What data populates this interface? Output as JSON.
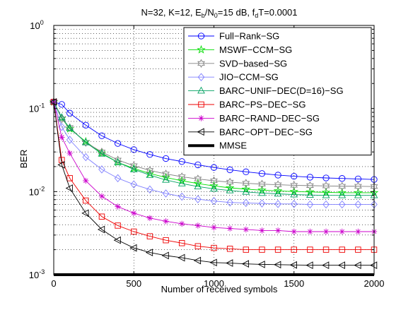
{
  "chart_data": {
    "type": "line",
    "title": "N=32, K=12, E_b/N_0=15 dB, f_dT=0.0001",
    "title_parts": {
      "p1": "N=32, K=12, E",
      "sub1": "b",
      "p2": "/N",
      "sub2": "0",
      "p3": "=15 dB, f",
      "sub3": "d",
      "p4": "T=0.0001"
    },
    "xlabel": "Number of received symbols",
    "ylabel": "BER",
    "x_scale": "linear",
    "y_scale": "log",
    "xlim": [
      0,
      2000
    ],
    "ylim": [
      0.001,
      1
    ],
    "x_ticks": [
      {
        "value": 0,
        "label": "0"
      },
      {
        "value": 500,
        "label": "500"
      },
      {
        "value": 1000,
        "label": "1000"
      },
      {
        "value": 1500,
        "label": "1500"
      },
      {
        "value": 2000,
        "label": "2000"
      }
    ],
    "y_ticks": [
      {
        "value": 0.001,
        "base": "10",
        "exp": "-3"
      },
      {
        "value": 0.01,
        "base": "10",
        "exp": "-2"
      },
      {
        "value": 0.1,
        "base": "10",
        "exp": "-1"
      },
      {
        "value": 1,
        "base": "10",
        "exp": "0"
      }
    ],
    "grid": true,
    "legend_position": "top-right",
    "x": [
      0,
      50,
      100,
      200,
      300,
      400,
      500,
      600,
      700,
      800,
      900,
      1000,
      1100,
      1200,
      1300,
      1400,
      1500,
      1600,
      1700,
      1800,
      1900,
      2000
    ],
    "series": [
      {
        "name": "Full−Rank−SG",
        "color": "#0000ff",
        "marker": "circle",
        "values": [
          0.12,
          0.112,
          0.088,
          0.063,
          0.047,
          0.038,
          0.032,
          0.028,
          0.025,
          0.023,
          0.021,
          0.0195,
          0.0183,
          0.0173,
          0.0165,
          0.0158,
          0.0153,
          0.0149,
          0.0146,
          0.0144,
          0.0142,
          0.014
        ]
      },
      {
        "name": "MSWF−CCM−SG",
        "color": "#00dd00",
        "marker": "star",
        "values": [
          0.12,
          0.076,
          0.057,
          0.04,
          0.029,
          0.0225,
          0.019,
          0.0165,
          0.0148,
          0.0135,
          0.0125,
          0.0117,
          0.0111,
          0.0107,
          0.0104,
          0.0102,
          0.01,
          0.0099,
          0.0098,
          0.0097,
          0.0097,
          0.0097
        ]
      },
      {
        "name": "SVD−based−SG",
        "color": "#808080",
        "marker": "hexagram",
        "values": [
          0.12,
          0.075,
          0.059,
          0.039,
          0.03,
          0.024,
          0.0205,
          0.018,
          0.0163,
          0.0151,
          0.0142,
          0.0135,
          0.013,
          0.0126,
          0.0123,
          0.0121,
          0.0119,
          0.0118,
          0.0117,
          0.0116,
          0.0116,
          0.0115
        ]
      },
      {
        "name": "JIO−CCM−SG",
        "color": "#8080ff",
        "marker": "diamond",
        "values": [
          0.12,
          0.06,
          0.042,
          0.026,
          0.0185,
          0.0145,
          0.0122,
          0.0106,
          0.0095,
          0.0087,
          0.0081,
          0.0077,
          0.0074,
          0.0073,
          0.0072,
          0.0071,
          0.0071,
          0.007,
          0.007,
          0.007,
          0.007,
          0.007
        ]
      },
      {
        "name": "BARC−UNIF−DEC(D=16)−SG",
        "color": "#00a060",
        "marker": "triangle-up",
        "values": [
          0.12,
          0.078,
          0.058,
          0.039,
          0.0285,
          0.0225,
          0.0185,
          0.0158,
          0.0138,
          0.0125,
          0.0115,
          0.0108,
          0.0103,
          0.0099,
          0.0096,
          0.0094,
          0.0092,
          0.0091,
          0.009,
          0.009,
          0.009,
          0.009
        ]
      },
      {
        "name": "BARC−PS−DEC−SG",
        "color": "#ee0000",
        "marker": "square",
        "values": [
          0.12,
          0.024,
          0.0145,
          0.0078,
          0.005,
          0.0039,
          0.0033,
          0.0029,
          0.0026,
          0.0024,
          0.0022,
          0.0021,
          0.00205,
          0.002,
          0.002,
          0.002,
          0.002,
          0.002,
          0.002,
          0.002,
          0.002,
          0.002
        ]
      },
      {
        "name": "BARC−RAND−DEC−SG",
        "color": "#cc00cc",
        "marker": "asterisk",
        "values": [
          0.12,
          0.045,
          0.029,
          0.0135,
          0.0088,
          0.0066,
          0.0055,
          0.0048,
          0.0044,
          0.0041,
          0.0039,
          0.0037,
          0.0036,
          0.0035,
          0.0034,
          0.0034,
          0.0033,
          0.0033,
          0.0033,
          0.0033,
          0.0033,
          0.0033
        ]
      },
      {
        "name": "BARC−OPT−DEC−SG",
        "color": "#000000",
        "marker": "triangle-left",
        "values": [
          0.12,
          0.021,
          0.011,
          0.0055,
          0.0035,
          0.0026,
          0.0021,
          0.00185,
          0.0017,
          0.0016,
          0.00148,
          0.0014,
          0.00138,
          0.00135,
          0.00133,
          0.00132,
          0.00131,
          0.0013,
          0.0013,
          0.0013,
          0.0013,
          0.0013
        ]
      },
      {
        "name": "MMSE",
        "color": "#000000",
        "marker": "none",
        "thick": true,
        "values": [
          0.001,
          0.001,
          0.001,
          0.001,
          0.001,
          0.001,
          0.001,
          0.001,
          0.001,
          0.001,
          0.001,
          0.001,
          0.001,
          0.001,
          0.001,
          0.001,
          0.001,
          0.001,
          0.001,
          0.001,
          0.001,
          0.001
        ]
      }
    ]
  }
}
